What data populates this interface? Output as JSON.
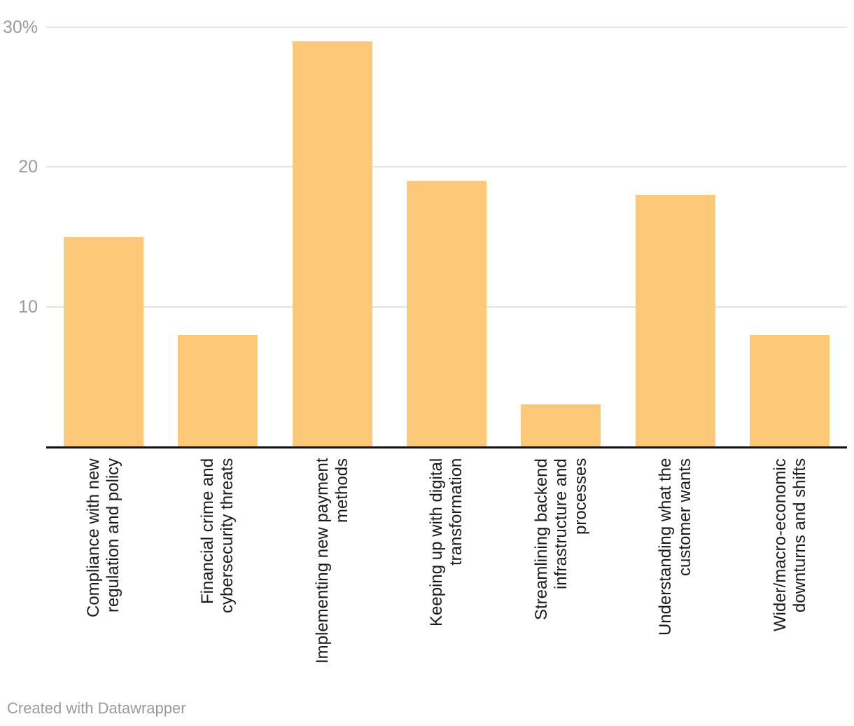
{
  "chart_data": {
    "type": "bar",
    "categories": [
      "Compliance with new\nregulation and policy",
      "Financial crime and\ncybersecurity threats",
      "Implementing new payment\nmethods",
      "Keeping up with digital\ntransformation",
      "Streamlining backend\ninfrastructure and\nprocesses",
      "Understanding what the\ncustomer wants",
      "Wider/macro-economic\ndownturns and shifts"
    ],
    "values": [
      15,
      8,
      29,
      19,
      3,
      18,
      8
    ],
    "title": "",
    "xlabel": "",
    "ylabel": "",
    "ylim": [
      0,
      30
    ],
    "yticks": [
      {
        "value": 30,
        "label": "30%"
      },
      {
        "value": 20,
        "label": "20"
      },
      {
        "value": 10,
        "label": "10"
      }
    ],
    "grid": "horizontal",
    "legend": "none",
    "bar_color": "#FCC978",
    "gridline_color": "#e3e3e3",
    "axis_line_color": "#111111",
    "tick_label_color": "#9b9b9b",
    "category_label_color": "#1a1a1a"
  },
  "footer": {
    "credit": "Created with Datawrapper"
  }
}
